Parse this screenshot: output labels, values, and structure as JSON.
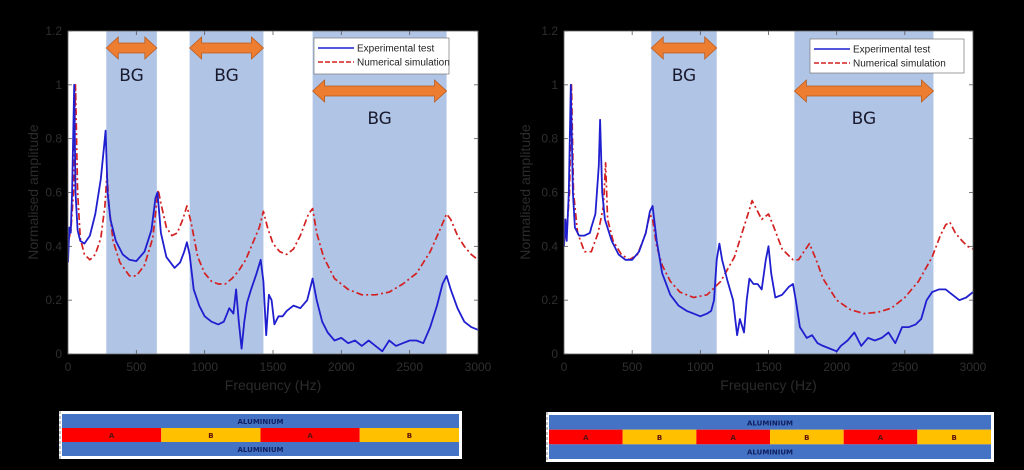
{
  "chart_data": [
    {
      "type": "line",
      "panel": "left",
      "xlabel": "Frequency (Hz)",
      "ylabel": "Normalised amplitude",
      "xlim": [
        0,
        3000
      ],
      "ylim": [
        0,
        1.2
      ],
      "xticks": [
        "0",
        "500",
        "1000",
        "1500",
        "2000",
        "2500",
        "3000"
      ],
      "yticks": [
        "0",
        "0.2",
        "0.4",
        "0.6",
        "0.8",
        "1",
        "1.2"
      ],
      "legend": {
        "position": "top-right",
        "entries": [
          "Experimental test",
          "Numerical simulation"
        ]
      },
      "band_gaps": [
        {
          "label": "BG",
          "start": 280,
          "end": 650
        },
        {
          "label": "BG",
          "start": 890,
          "end": 1430
        },
        {
          "label": "BG",
          "start": 1790,
          "end": 2770
        }
      ],
      "series": [
        {
          "name": "Experimental test",
          "color": "#1f1fd0",
          "style": "solid",
          "x": [
            0,
            10,
            20,
            30,
            45,
            55,
            70,
            90,
            120,
            160,
            200,
            240,
            260,
            275,
            290,
            310,
            350,
            400,
            450,
            500,
            560,
            610,
            640,
            655,
            680,
            720,
            780,
            820,
            850,
            870,
            890,
            920,
            960,
            1000,
            1050,
            1100,
            1140,
            1180,
            1210,
            1230,
            1250,
            1270,
            1290,
            1310,
            1340,
            1380,
            1410,
            1430,
            1450,
            1470,
            1490,
            1510,
            1540,
            1570,
            1600,
            1650,
            1700,
            1750,
            1790,
            1820,
            1860,
            1900,
            1950,
            2000,
            2050,
            2100,
            2150,
            2200,
            2250,
            2300,
            2350,
            2400,
            2450,
            2500,
            2550,
            2600,
            2650,
            2700,
            2740,
            2770,
            2800,
            2850,
            2900,
            2950,
            3000
          ],
          "y": [
            0.34,
            0.47,
            0.45,
            0.6,
            1.0,
            0.6,
            0.46,
            0.42,
            0.41,
            0.44,
            0.52,
            0.65,
            0.75,
            0.83,
            0.6,
            0.5,
            0.42,
            0.37,
            0.35,
            0.345,
            0.38,
            0.46,
            0.58,
            0.6,
            0.45,
            0.36,
            0.32,
            0.34,
            0.38,
            0.415,
            0.37,
            0.24,
            0.18,
            0.14,
            0.12,
            0.11,
            0.12,
            0.17,
            0.15,
            0.24,
            0.12,
            0.02,
            0.12,
            0.19,
            0.24,
            0.3,
            0.35,
            0.27,
            0.07,
            0.22,
            0.2,
            0.11,
            0.14,
            0.14,
            0.16,
            0.18,
            0.17,
            0.2,
            0.28,
            0.2,
            0.12,
            0.08,
            0.05,
            0.06,
            0.04,
            0.05,
            0.03,
            0.05,
            0.03,
            0.01,
            0.05,
            0.03,
            0.04,
            0.05,
            0.05,
            0.04,
            0.1,
            0.18,
            0.26,
            0.29,
            0.24,
            0.17,
            0.12,
            0.1,
            0.09
          ]
        },
        {
          "name": "Numerical simulation",
          "color": "#d42020",
          "style": "dash-dot",
          "x": [
            0,
            20,
            40,
            55,
            70,
            90,
            120,
            160,
            200,
            240,
            270,
            285,
            300,
            330,
            380,
            450,
            500,
            560,
            620,
            660,
            680,
            720,
            760,
            800,
            840,
            870,
            900,
            950,
            1000,
            1050,
            1100,
            1150,
            1200,
            1250,
            1300,
            1350,
            1400,
            1430,
            1460,
            1500,
            1550,
            1600,
            1650,
            1700,
            1760,
            1790,
            1820,
            1870,
            1950,
            2050,
            2150,
            2250,
            2350,
            2450,
            2550,
            2650,
            2720,
            2770,
            2800,
            2850,
            2900,
            2950,
            3000
          ],
          "y": [
            0.42,
            0.45,
            0.6,
            1.0,
            0.6,
            0.43,
            0.37,
            0.35,
            0.37,
            0.43,
            0.55,
            0.67,
            0.55,
            0.42,
            0.34,
            0.29,
            0.29,
            0.33,
            0.43,
            0.61,
            0.56,
            0.47,
            0.44,
            0.45,
            0.5,
            0.55,
            0.49,
            0.36,
            0.3,
            0.27,
            0.26,
            0.26,
            0.28,
            0.31,
            0.35,
            0.41,
            0.47,
            0.53,
            0.47,
            0.41,
            0.38,
            0.37,
            0.39,
            0.44,
            0.52,
            0.54,
            0.45,
            0.36,
            0.28,
            0.24,
            0.22,
            0.22,
            0.23,
            0.26,
            0.3,
            0.38,
            0.46,
            0.52,
            0.5,
            0.44,
            0.4,
            0.37,
            0.35
          ]
        }
      ]
    },
    {
      "type": "line",
      "panel": "right",
      "xlabel": "Frequency (Hz)",
      "ylabel": "Normalised amplitude",
      "xlim": [
        0,
        3000
      ],
      "ylim": [
        0,
        1.2
      ],
      "xticks": [
        "0",
        "500",
        "1000",
        "1500",
        "2000",
        "2500",
        "3000"
      ],
      "yticks": [
        "0",
        "0.2",
        "0.4",
        "0.6",
        "0.8",
        "1",
        "1.2"
      ],
      "legend": {
        "position": "top-right",
        "entries": [
          "Experimental test",
          "Numerical simulation"
        ]
      },
      "band_gaps": [
        {
          "label": "BG",
          "start": 640,
          "end": 1120
        },
        {
          "label": "BG",
          "start": 1690,
          "end": 2710
        }
      ],
      "series": [
        {
          "name": "Experimental test",
          "color": "#1f1fd0",
          "style": "solid",
          "x": [
            0,
            10,
            20,
            35,
            50,
            65,
            80,
            110,
            150,
            190,
            200,
            230,
            255,
            265,
            280,
            300,
            350,
            400,
            450,
            500,
            550,
            600,
            630,
            650,
            680,
            720,
            780,
            840,
            900,
            950,
            1000,
            1050,
            1080,
            1100,
            1120,
            1140,
            1160,
            1200,
            1240,
            1270,
            1290,
            1320,
            1340,
            1360,
            1390,
            1420,
            1450,
            1480,
            1500,
            1520,
            1550,
            1600,
            1650,
            1680,
            1700,
            1730,
            1780,
            1820,
            1860,
            1900,
            1950,
            2000,
            2030,
            2080,
            2130,
            2180,
            2230,
            2280,
            2330,
            2380,
            2430,
            2480,
            2530,
            2580,
            2620,
            2660,
            2700,
            2750,
            2800,
            2850,
            2900,
            2950,
            3000
          ],
          "y": [
            0.4,
            0.5,
            0.42,
            0.6,
            1.0,
            0.6,
            0.47,
            0.44,
            0.44,
            0.45,
            0.47,
            0.52,
            0.7,
            0.87,
            0.6,
            0.5,
            0.42,
            0.37,
            0.35,
            0.35,
            0.38,
            0.45,
            0.53,
            0.55,
            0.42,
            0.3,
            0.22,
            0.18,
            0.16,
            0.15,
            0.14,
            0.15,
            0.16,
            0.2,
            0.35,
            0.41,
            0.35,
            0.27,
            0.2,
            0.07,
            0.13,
            0.08,
            0.2,
            0.28,
            0.26,
            0.26,
            0.24,
            0.35,
            0.4,
            0.3,
            0.21,
            0.22,
            0.25,
            0.26,
            0.2,
            0.1,
            0.06,
            0.07,
            0.04,
            0.03,
            0.02,
            0.01,
            0.03,
            0.05,
            0.08,
            0.03,
            0.06,
            0.05,
            0.06,
            0.08,
            0.04,
            0.1,
            0.1,
            0.11,
            0.13,
            0.2,
            0.23,
            0.24,
            0.24,
            0.22,
            0.2,
            0.21,
            0.23
          ]
        },
        {
          "name": "Numerical simulation",
          "color": "#d42020",
          "style": "dash-dot",
          "x": [
            0,
            20,
            40,
            55,
            70,
            100,
            150,
            200,
            250,
            290,
            305,
            320,
            360,
            420,
            480,
            540,
            600,
            630,
            650,
            680,
            720,
            780,
            850,
            950,
            1050,
            1150,
            1250,
            1300,
            1350,
            1380,
            1420,
            1450,
            1500,
            1540,
            1600,
            1680,
            1720,
            1760,
            1800,
            1850,
            1900,
            2000,
            2100,
            2200,
            2300,
            2400,
            2500,
            2600,
            2700,
            2760,
            2800,
            2830,
            2870,
            2920,
            2960,
            3000
          ],
          "y": [
            0.42,
            0.45,
            0.6,
            1.0,
            0.6,
            0.45,
            0.38,
            0.38,
            0.45,
            0.55,
            0.71,
            0.5,
            0.42,
            0.37,
            0.35,
            0.37,
            0.45,
            0.52,
            0.5,
            0.4,
            0.33,
            0.27,
            0.23,
            0.21,
            0.22,
            0.27,
            0.36,
            0.44,
            0.52,
            0.57,
            0.53,
            0.5,
            0.52,
            0.47,
            0.39,
            0.35,
            0.35,
            0.38,
            0.41,
            0.35,
            0.28,
            0.2,
            0.165,
            0.15,
            0.155,
            0.17,
            0.21,
            0.27,
            0.36,
            0.44,
            0.48,
            0.49,
            0.45,
            0.42,
            0.4,
            0.39
          ]
        }
      ]
    }
  ],
  "specimens": [
    {
      "panel": "left",
      "skin_top": "ALUMINIUM",
      "skin_bottom": "ALUMINIUM",
      "cells": [
        "A",
        "B",
        "A",
        "B"
      ],
      "colors": {
        "skin": "#4472c4",
        "A": "#ff0000",
        "B": "#ffc000",
        "skin_text": "#102060",
        "cell_text": "#5a1010"
      }
    },
    {
      "panel": "right",
      "skin_top": "ALUMINIUM",
      "skin_bottom": "ALUMINIUM",
      "cells": [
        "A",
        "B",
        "A",
        "B",
        "A",
        "B"
      ],
      "colors": {
        "skin": "#4472c4",
        "A": "#ff0000",
        "B": "#ffc000",
        "skin_text": "#102060",
        "cell_text": "#5a1010"
      }
    }
  ],
  "colors": {
    "band": "#b0c4e6",
    "arrow": "#ed7d31",
    "arrow_edge": "#b85c1e",
    "background": "#000000"
  }
}
